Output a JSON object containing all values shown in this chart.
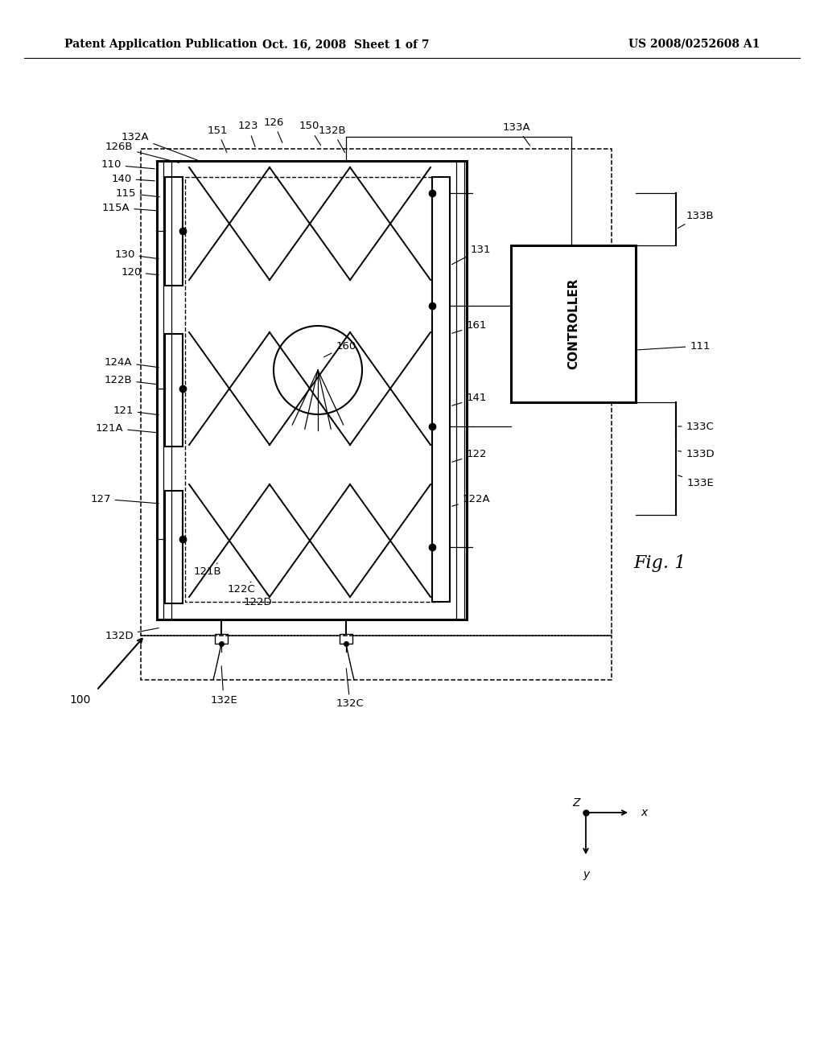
{
  "bg_color": "#ffffff",
  "header_left": "Patent Application Publication",
  "header_center": "Oct. 16, 2008  Sheet 1 of 7",
  "header_right": "US 2008/0252608 A1",
  "fig_label": "Fig. 1",
  "controller_label": "CONTROLLER"
}
